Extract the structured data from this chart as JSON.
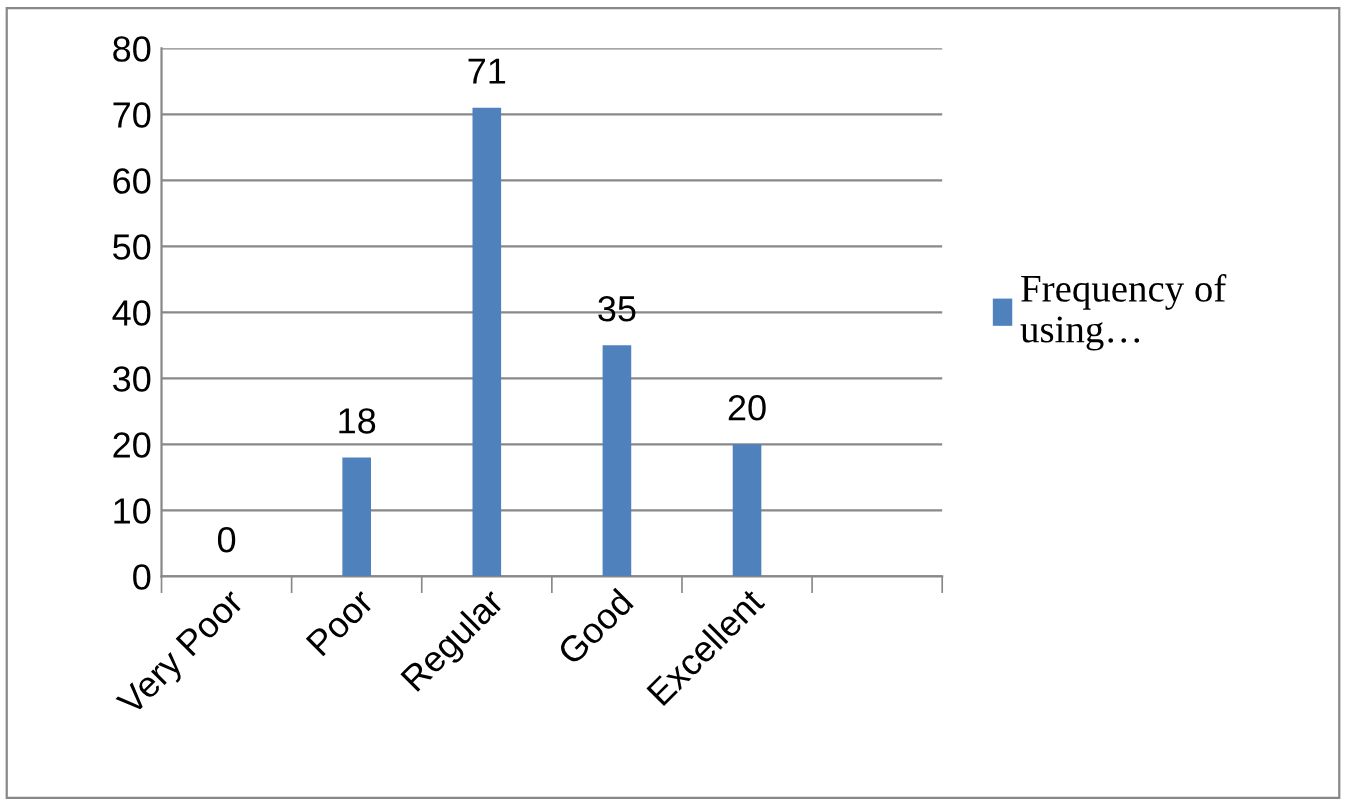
{
  "chart_data": {
    "type": "bar",
    "categories": [
      "Very Poor",
      "Poor",
      "Regular",
      "Good",
      "Excellent",
      null
    ],
    "series": [
      {
        "name": "Frequency of using…",
        "color": "#4f81bd",
        "values": [
          0,
          18,
          71,
          35,
          20,
          null
        ]
      }
    ],
    "ylim": [
      0,
      80
    ],
    "yticks": [
      0,
      10,
      20,
      30,
      40,
      50,
      60,
      70,
      80
    ],
    "grid": "y",
    "legend": "right",
    "data_labels": true
  }
}
